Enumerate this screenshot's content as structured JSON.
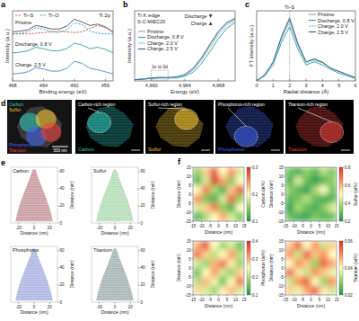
{
  "chart_data": [
    {
      "panel": "a",
      "type": "line",
      "title": "Ti 2p",
      "xlabel": "Binding energy (eV)",
      "ylabel": "Intensity (a.u.)",
      "x": [
        468,
        467,
        466,
        465,
        464,
        463,
        462,
        461,
        460,
        459,
        458,
        457,
        456,
        455
      ],
      "xlim": [
        468,
        455
      ],
      "xticks": [
        468,
        464,
        460,
        456
      ],
      "ylim": [
        0,
        10
      ],
      "tick_labels": "x",
      "legend": "top",
      "series": [
        {
          "name": "Pristine",
          "color": "#4d4d4d",
          "line_style": "solid",
          "values": [
            7.0,
            7.1,
            7.3,
            7.9,
            7.7,
            7.4,
            7.4,
            7.8,
            8.8,
            8.4,
            7.9,
            8.1,
            7.7,
            7.0
          ]
        },
        {
          "name": "Discharge, 0.8 V",
          "color": "#2f9c95",
          "line_style": "solid",
          "values": [
            4.0,
            4.1,
            4.3,
            4.8,
            4.6,
            4.3,
            4.3,
            4.6,
            5.4,
            5.1,
            4.6,
            4.8,
            4.5,
            4.0
          ]
        },
        {
          "name": "Charge, 2.5 V",
          "color": "#4f86c6",
          "line_style": "solid",
          "values": [
            1.0,
            1.1,
            1.3,
            1.9,
            1.7,
            1.4,
            1.4,
            1.8,
            2.8,
            2.5,
            1.8,
            1.6,
            1.3,
            1.0
          ]
        },
        {
          "name": "Ti–S",
          "color": "#e0443a",
          "line_style": "dashed",
          "values": [
            6.7,
            6.7,
            6.7,
            6.8,
            6.9,
            7.0,
            7.1,
            7.0,
            6.9,
            7.0,
            7.5,
            7.9,
            7.6,
            6.9
          ]
        },
        {
          "name": "Ti–O",
          "color": "#1f9bd1",
          "line_style": "dashed",
          "values": [
            6.7,
            6.8,
            7.0,
            7.6,
            7.4,
            7.0,
            6.9,
            7.3,
            8.3,
            8.0,
            7.1,
            6.8,
            6.7,
            6.7
          ]
        }
      ]
    },
    {
      "panel": "b",
      "type": "line",
      "title": "Ti K edge",
      "subtitle": "S-C-MIEC20",
      "xlabel": "Energy (eV)",
      "ylabel": "Intensity (a.u.)",
      "x": [
        4958,
        4959,
        4960,
        4961,
        4962,
        4963,
        4964,
        4965,
        4966,
        4967,
        4968,
        4969,
        4970
      ],
      "xlim": [
        4958,
        4970
      ],
      "xticks": [
        {
          "value": 4960,
          "label": "4,960"
        },
        {
          "value": 4964,
          "label": "4,964"
        },
        {
          "value": 4968,
          "label": "4,968"
        }
      ],
      "ylim": [
        0,
        1.2
      ],
      "tick_labels": "x",
      "legend": "center",
      "annotations": [
        {
          "text": "1s to 3d",
          "x": [
            4960,
            4962
          ]
        },
        {
          "text": "Discharge"
        },
        {
          "text": "Charge"
        }
      ],
      "series": [
        {
          "name": "Pristine",
          "color": "#9e9e9e",
          "line_style": "solid",
          "values": [
            0.02,
            0.03,
            0.05,
            0.06,
            0.05,
            0.06,
            0.1,
            0.2,
            0.38,
            0.6,
            0.82,
            0.98,
            1.05
          ]
        },
        {
          "name": "Discharge, 0.8 V",
          "color": "#2f9c95",
          "line_style": "solid",
          "values": [
            0.02,
            0.03,
            0.04,
            0.05,
            0.05,
            0.05,
            0.08,
            0.15,
            0.3,
            0.5,
            0.72,
            0.9,
            1.0
          ]
        },
        {
          "name": "Charge, 2.0 V",
          "color": "#9ad0e6",
          "line_style": "solid",
          "values": [
            0.02,
            0.03,
            0.05,
            0.06,
            0.05,
            0.06,
            0.09,
            0.18,
            0.35,
            0.56,
            0.78,
            0.95,
            1.03
          ]
        },
        {
          "name": "Charge, 2.5 V",
          "color": "#2b5c8a",
          "line_style": "solid",
          "values": [
            0.02,
            0.03,
            0.05,
            0.06,
            0.06,
            0.07,
            0.11,
            0.22,
            0.4,
            0.63,
            0.85,
            1.0,
            1.07
          ]
        }
      ]
    },
    {
      "panel": "c",
      "type": "line",
      "xlabel": "Radial distance (Å)",
      "ylabel": "FT intensity (a.u.)",
      "x": [
        0,
        0.5,
        1,
        1.5,
        2,
        2.5,
        3,
        3.5,
        4,
        4.5,
        5,
        5.5,
        6
      ],
      "xlim": [
        0,
        6
      ],
      "xticks": [
        0,
        1,
        2,
        3,
        4,
        5,
        6
      ],
      "ylim": [
        0,
        1.1
      ],
      "tick_labels": "x",
      "legend": "top-right",
      "annotations": [
        {
          "text": "Ti–S",
          "x": 2
        }
      ],
      "series": [
        {
          "name": "Pristine",
          "color": "#9e9e9e",
          "line_style": "solid",
          "values": [
            0,
            0.1,
            0.3,
            0.7,
            1.0,
            0.6,
            0.3,
            0.35,
            0.3,
            0.2,
            0.15,
            0.1,
            0.05
          ]
        },
        {
          "name": "Discharge, 0.8 V",
          "color": "#2f9c95",
          "line_style": "solid",
          "values": [
            0,
            0.08,
            0.25,
            0.6,
            0.85,
            0.5,
            0.25,
            0.3,
            0.25,
            0.18,
            0.12,
            0.08,
            0.04
          ]
        },
        {
          "name": "Charge, 2.0 V",
          "color": "#9ad0e6",
          "line_style": "solid",
          "values": [
            0,
            0.1,
            0.28,
            0.65,
            0.92,
            0.55,
            0.28,
            0.32,
            0.28,
            0.2,
            0.14,
            0.09,
            0.05
          ]
        },
        {
          "name": "Charge, 2.5 V",
          "color": "#2b5c8a",
          "line_style": "solid",
          "values": [
            0,
            0.1,
            0.3,
            0.68,
            0.97,
            0.58,
            0.3,
            0.34,
            0.29,
            0.2,
            0.15,
            0.1,
            0.05
          ]
        }
      ]
    },
    {
      "panel": "f",
      "type": "heatmap",
      "xlabel": "Distance (nm)",
      "ylabel": "Distance (nm)",
      "xlim": [
        -15,
        15
      ],
      "ylim": [
        -15,
        15
      ],
      "xticks": [
        -15,
        -10,
        -5,
        0,
        5,
        10,
        15
      ],
      "yticks": [
        -15,
        -10,
        -5,
        0,
        5,
        10,
        15
      ],
      "colorbar": {
        "label": "Carbon (at%)",
        "range": [
          0.1,
          0.3
        ],
        "ticks": [
          0.1,
          0.2,
          0.3
        ]
      },
      "cells": [
        [
          0.15,
          0.22,
          0.28,
          0.2,
          0.25,
          0.18
        ],
        [
          0.12,
          0.18,
          0.3,
          0.24,
          0.14,
          0.2
        ],
        [
          0.2,
          0.26,
          0.16,
          0.12,
          0.22,
          0.28
        ],
        [
          0.25,
          0.14,
          0.12,
          0.18,
          0.27,
          0.15
        ],
        [
          0.18,
          0.22,
          0.26,
          0.15,
          0.12,
          0.2
        ],
        [
          0.12,
          0.16,
          0.2,
          0.24,
          0.18,
          0.14
        ]
      ]
    },
    {
      "type": "heatmap",
      "xlabel": "Distance (nm)",
      "ylabel": "Distance (nm)",
      "xlim": [
        -15,
        15
      ],
      "ylim": [
        -15,
        15
      ],
      "xticks": [
        -15,
        -10,
        -5,
        0,
        5,
        10,
        15
      ],
      "yticks": [
        -15,
        -10,
        -5,
        0,
        5,
        10,
        15
      ],
      "colorbar": {
        "label": "Sulfur (at%)",
        "range": [
          0.2,
          0.8
        ],
        "ticks": [
          0.2,
          0.4,
          0.6,
          0.8
        ]
      },
      "cells": [
        [
          0.3,
          0.25,
          0.35,
          0.28,
          0.4,
          0.32
        ],
        [
          0.25,
          0.45,
          0.3,
          0.22,
          0.28,
          0.35
        ],
        [
          0.35,
          0.28,
          0.22,
          0.38,
          0.5,
          0.3
        ],
        [
          0.28,
          0.32,
          0.4,
          0.3,
          0.25,
          0.28
        ],
        [
          0.22,
          0.38,
          0.3,
          0.26,
          0.34,
          0.45
        ],
        [
          0.3,
          0.26,
          0.24,
          0.32,
          0.28,
          0.3
        ]
      ]
    },
    {
      "type": "heatmap",
      "xlabel": "Distance (nm)",
      "ylabel": "Distance (nm)",
      "xlim": [
        -15,
        15
      ],
      "ylim": [
        -15,
        15
      ],
      "xticks": [
        -15,
        -10,
        -5,
        0,
        5,
        10,
        15
      ],
      "yticks": [
        -15,
        -10,
        -5,
        0,
        5,
        10,
        15
      ],
      "colorbar": {
        "label": "Phosphorus (at%)",
        "range": [
          0.1,
          0.4
        ],
        "ticks": [
          0.1,
          0.2,
          0.3,
          0.4
        ]
      },
      "cells": [
        [
          0.3,
          0.38,
          0.25,
          0.18,
          0.22,
          0.15
        ],
        [
          0.35,
          0.28,
          0.2,
          0.25,
          0.32,
          0.2
        ],
        [
          0.22,
          0.18,
          0.3,
          0.35,
          0.26,
          0.18
        ],
        [
          0.15,
          0.25,
          0.32,
          0.22,
          0.18,
          0.28
        ],
        [
          0.2,
          0.3,
          0.24,
          0.15,
          0.25,
          0.35
        ],
        [
          0.28,
          0.22,
          0.18,
          0.26,
          0.3,
          0.22
        ]
      ]
    },
    {
      "type": "heatmap",
      "xlabel": "Distance (nm)",
      "ylabel": "Distance (nm)",
      "xlim": [
        -15,
        15
      ],
      "ylim": [
        -15,
        15
      ],
      "xticks": [
        -15,
        -10,
        -5,
        0,
        5,
        10,
        15
      ],
      "yticks": [
        -15,
        -10,
        -5,
        0,
        5,
        10,
        15
      ],
      "colorbar": {
        "label": "Titanium (at%)",
        "range": [
          0.02,
          0.06
        ],
        "ticks": [
          0.02,
          0.04,
          0.06
        ]
      },
      "cells": [
        [
          0.045,
          0.055,
          0.04,
          0.05,
          0.035,
          0.045
        ],
        [
          0.05,
          0.035,
          0.055,
          0.045,
          0.05,
          0.04
        ],
        [
          0.04,
          0.05,
          0.045,
          0.03,
          0.055,
          0.048
        ],
        [
          0.055,
          0.042,
          0.035,
          0.05,
          0.045,
          0.038
        ],
        [
          0.035,
          0.05,
          0.055,
          0.04,
          0.03,
          0.05
        ],
        [
          0.045,
          0.038,
          0.048,
          0.055,
          0.042,
          0.035
        ]
      ]
    }
  ],
  "edx_maps": {
    "panel": "d",
    "scale_bar": "500 nm",
    "maps": [
      {
        "element": "Carbon",
        "region": "Carbon-rich region",
        "color": "#2ec4b6"
      },
      {
        "element": "Sulfur",
        "region": "Sulfur-rich region",
        "color": "#f4c430"
      },
      {
        "element": "Phosphorus",
        "region": "Phosphorus-rich region",
        "color": "#4263eb"
      },
      {
        "element": "Titanium",
        "region": "Titanium-rich region",
        "color": "#e8413c"
      }
    ]
  },
  "tomography": {
    "panel": "e",
    "xlabel": "Distance (nm)",
    "ylabel": "Distance (nm)",
    "xlim": [
      -30,
      30
    ],
    "ylim": [
      0,
      65
    ],
    "xticks": [
      -20,
      0,
      20
    ],
    "yticks": [
      0,
      20,
      40,
      60
    ],
    "maps": [
      {
        "element": "Carbon",
        "color": "#7a0f1f"
      },
      {
        "element": "Sulfur",
        "color": "#4caf50"
      },
      {
        "element": "Phosphorus",
        "color": "#3d4fb5"
      },
      {
        "element": "Titanium",
        "color": "#2f4f4f"
      }
    ]
  }
}
